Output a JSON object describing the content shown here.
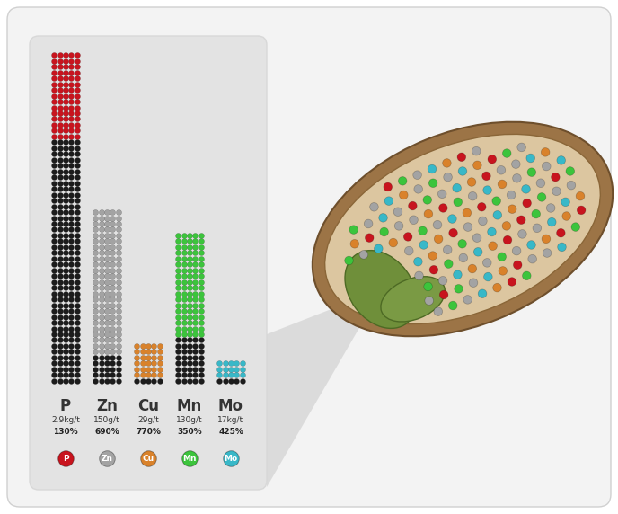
{
  "chart_data": {
    "type": "bar",
    "stacked": true,
    "tick_labels": false,
    "categories": [
      "P",
      "Zn",
      "Cu",
      "Mn",
      "Mo"
    ],
    "amounts": [
      "2.9kg/t",
      "150g/t",
      "29g/t",
      "130g/t",
      "17kg/t"
    ],
    "percent_labels": [
      "130%",
      "690%",
      "770%",
      "350%",
      "425%"
    ],
    "series": [
      {
        "color": "#1c1c1c",
        "values": [
          42,
          5,
          1,
          8,
          1
        ]
      },
      {
        "colors": [
          "#c8141e",
          "#a3a3a3",
          "#d9822b",
          "#3cc43c",
          "#38b8c8"
        ],
        "values": [
          15,
          25,
          6,
          18,
          3
        ]
      }
    ]
  }
}
